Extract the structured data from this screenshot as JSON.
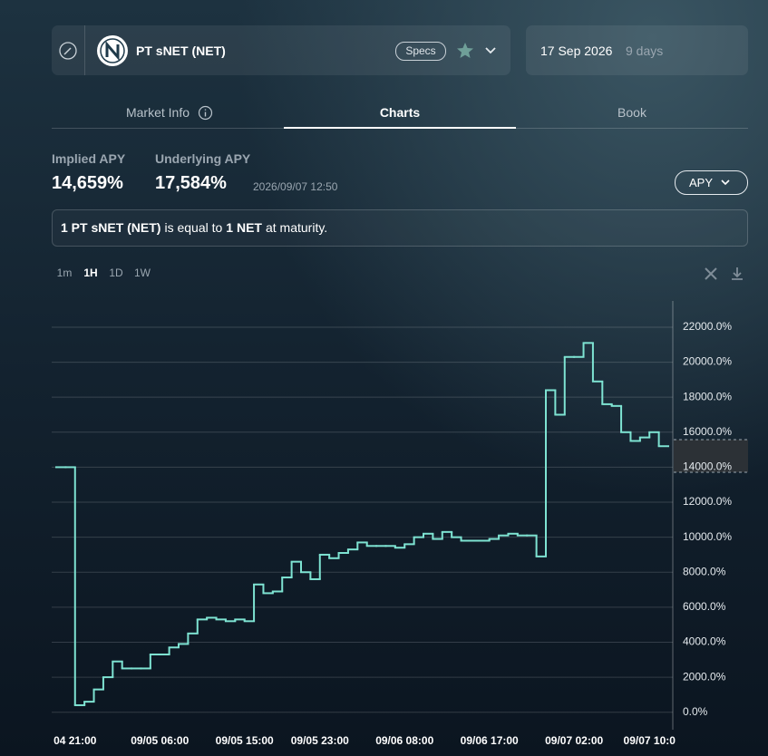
{
  "header": {
    "market": "PT sNET (NET)",
    "specs": "Specs",
    "date": "17 Sep 2026",
    "days": "9 days"
  },
  "tabs": [
    "Market Info",
    "Charts",
    "Book"
  ],
  "stats": {
    "implied_label": "Implied APY",
    "implied_value": "14,659%",
    "underlying_label": "Underlying APY",
    "underlying_value": "17,584%",
    "timestamp": "2026/09/07 12:50",
    "metric_button": "APY"
  },
  "notice": [
    "1 PT sNET (NET)",
    "is equal to",
    "1 NET",
    "at maturity."
  ],
  "timeframes": [
    "1m",
    "1H",
    "1D",
    "1W"
  ],
  "chart_data": {
    "type": "line",
    "step": true,
    "color": "#7ee3d2",
    "grid": true,
    "categories": [
      null,
      null,
      "04 21:00",
      null,
      null,
      null,
      null,
      null,
      null,
      null,
      null,
      "09/05 06:00",
      null,
      null,
      null,
      null,
      null,
      null,
      null,
      null,
      "09/05 15:00",
      null,
      null,
      null,
      null,
      null,
      null,
      null,
      "09/05 23:00",
      null,
      null,
      null,
      null,
      null,
      null,
      null,
      null,
      "09/06 08:00",
      null,
      null,
      null,
      null,
      null,
      null,
      null,
      null,
      "09/06 17:00",
      null,
      null,
      null,
      null,
      null,
      null,
      null,
      null,
      "09/07 02:00",
      null,
      null,
      null,
      null,
      null,
      null,
      null,
      "09/07 10:0",
      null
    ],
    "values": [
      14000,
      14000,
      400,
      600,
      1300,
      2000,
      2900,
      2500,
      2500,
      2500,
      3300,
      3300,
      3700,
      3900,
      4500,
      5300,
      5400,
      5300,
      5200,
      5300,
      5200,
      7300,
      6800,
      6900,
      7700,
      8600,
      8000,
      7600,
      9000,
      8800,
      9100,
      9300,
      9700,
      9500,
      9500,
      9500,
      9400,
      9600,
      10000,
      10200,
      9900,
      10300,
      10000,
      9800,
      9800,
      9800,
      9900,
      10100,
      10200,
      10100,
      10100,
      8900,
      18400,
      17000,
      20300,
      20300,
      21100,
      18900,
      17600,
      17500,
      16000,
      15500,
      15700,
      16000,
      15200
    ],
    "ylim": [
      -1000,
      23500
    ],
    "yticks": [
      {
        "value": 0,
        "label": "0.0%"
      },
      {
        "value": 2000,
        "label": "2000.0%"
      },
      {
        "value": 4000,
        "label": "4000.0%"
      },
      {
        "value": 6000,
        "label": "6000.0%"
      },
      {
        "value": 8000,
        "label": "8000.0%"
      },
      {
        "value": 10000,
        "label": "10000.0%"
      },
      {
        "value": 12000,
        "label": "12000.0%"
      },
      {
        "value": 14000,
        "label": "14000.0%"
      },
      {
        "value": 16000,
        "label": "16000.0%"
      },
      {
        "value": 18000,
        "label": "18000.0%"
      },
      {
        "value": 20000,
        "label": "20000.0%"
      },
      {
        "value": 22000,
        "label": "22000.0%"
      }
    ]
  }
}
